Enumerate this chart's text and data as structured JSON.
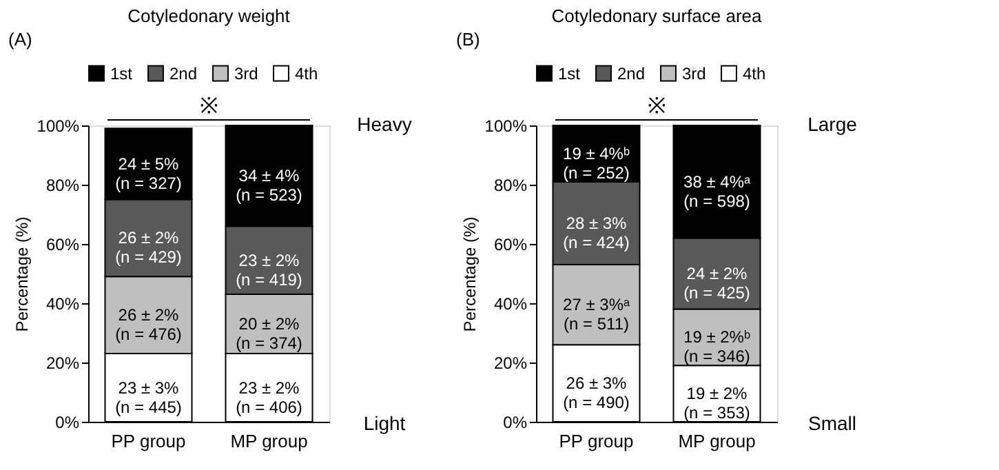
{
  "chart_data": [
    {
      "type": "bar",
      "stacked": true,
      "title": "Cotyledonary weight",
      "ylabel": "Percentage (%)",
      "categories": [
        "PP group",
        "MP group"
      ],
      "series": [
        {
          "name": "4th",
          "color": "#ffffff",
          "values": [
            23,
            23
          ],
          "value_labels": [
            "23 ± 3%\n(n = 445)",
            "23 ± 2%\n(n = 406)"
          ]
        },
        {
          "name": "3rd",
          "color": "#bfbfbf",
          "values": [
            26,
            20
          ],
          "value_labels": [
            "26 ± 2%\n(n = 476)",
            "20 ± 2%\n(n = 374)"
          ]
        },
        {
          "name": "2nd",
          "color": "#595959",
          "values": [
            26,
            23
          ],
          "value_labels": [
            "26 ± 2%\n(n = 429)",
            "23 ± 2%\n(n = 419)"
          ]
        },
        {
          "name": "1st",
          "color": "#000000",
          "values": [
            24,
            34
          ],
          "value_labels": [
            "24 ± 5%\n(n = 327)",
            "34 ± 4%\n(n = 523)"
          ]
        }
      ],
      "ylim": [
        0,
        100
      ],
      "yticks": [
        {
          "value": 0,
          "label": "0%"
        },
        {
          "value": 20,
          "label": "20%"
        },
        {
          "value": 40,
          "label": "40%"
        },
        {
          "value": 60,
          "label": "60%"
        },
        {
          "value": 80,
          "label": "80%"
        },
        {
          "value": 100,
          "label": "100%"
        }
      ],
      "grid": false,
      "legend": "top",
      "annotations": [
        "(A)",
        "※",
        "Heavy",
        "Light"
      ]
    },
    {
      "type": "bar",
      "stacked": true,
      "title": "Cotyledonary surface area",
      "ylabel": "Percentage (%)",
      "categories": [
        "PP group",
        "MP group"
      ],
      "series": [
        {
          "name": "4th",
          "color": "#ffffff",
          "values": [
            26,
            19
          ],
          "value_labels": [
            "26 ± 3%\n(n = 490)",
            "19 ± 2%\n(n = 353)"
          ]
        },
        {
          "name": "3rd",
          "color": "#bfbfbf",
          "values": [
            27,
            19
          ],
          "value_labels": [
            "27 ± 3%ᵃ\n(n = 511)",
            "19 ± 2%ᵇ\n(n = 346)"
          ]
        },
        {
          "name": "2nd",
          "color": "#595959",
          "values": [
            28,
            24
          ],
          "value_labels": [
            "28 ± 3%\n(n = 424)",
            "24 ± 2%\n(n = 425)"
          ]
        },
        {
          "name": "1st",
          "color": "#000000",
          "values": [
            19,
            38
          ],
          "value_labels": [
            "19 ± 4%ᵇ\n(n = 252)",
            "38 ± 4%ᵃ\n(n = 598)"
          ]
        }
      ],
      "ylim": [
        0,
        100
      ],
      "yticks": [
        {
          "value": 0,
          "label": "0%"
        },
        {
          "value": 20,
          "label": "20%"
        },
        {
          "value": 40,
          "label": "40%"
        },
        {
          "value": 60,
          "label": "60%"
        },
        {
          "value": 80,
          "label": "80%"
        },
        {
          "value": 100,
          "label": "100%"
        }
      ],
      "grid": false,
      "legend": "top",
      "annotations": [
        "(B)",
        "※",
        "Large",
        "Small"
      ]
    }
  ]
}
